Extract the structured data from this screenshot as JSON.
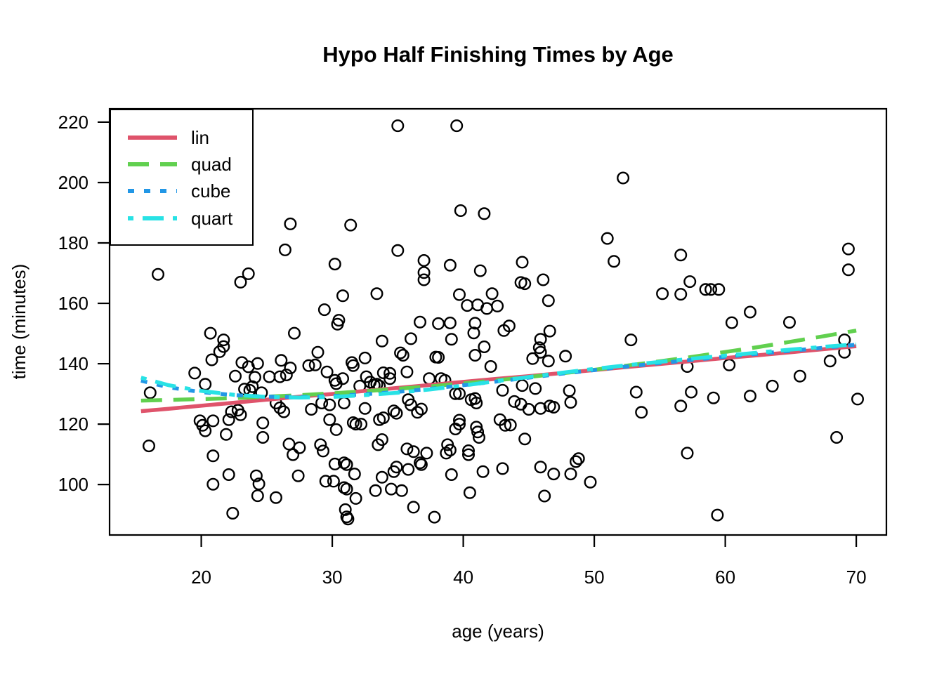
{
  "chart_data": {
    "type": "scatter",
    "title": "Hypo Half Finishing Times by Age",
    "xlabel": "age (years)",
    "ylabel": "time (minutes)",
    "x_range": [
      13.0,
      72.3
    ],
    "y_range": [
      83.3,
      224.4
    ],
    "x_ticks": [
      20,
      30,
      40,
      50,
      60,
      70
    ],
    "y_ticks": [
      100,
      120,
      140,
      160,
      180,
      200,
      220
    ],
    "grid": false,
    "background": "#ffffff",
    "marker": {
      "shape": "open-circle",
      "color": "#000000"
    },
    "legend_position": "top-left",
    "points": [
      [
        26.8,
        186.3
      ],
      [
        31.4,
        185.9
      ],
      [
        26.4,
        177.7
      ],
      [
        30.2,
        173.0
      ],
      [
        16.7,
        169.6
      ],
      [
        23.6,
        169.8
      ],
      [
        23.0,
        167.0
      ],
      [
        30.8,
        162.5
      ],
      [
        29.4,
        157.9
      ],
      [
        30.5,
        154.4
      ],
      [
        35.0,
        218.8
      ],
      [
        39.5,
        218.8
      ],
      [
        52.2,
        201.5
      ],
      [
        39.8,
        190.7
      ],
      [
        41.6,
        189.7
      ],
      [
        51.0,
        181.5
      ],
      [
        35.0,
        177.5
      ],
      [
        37.0,
        174.2
      ],
      [
        39.0,
        172.6
      ],
      [
        37.0,
        170.2
      ],
      [
        37.0,
        167.8
      ],
      [
        41.3,
        170.8
      ],
      [
        44.5,
        173.6
      ],
      [
        44.4,
        166.9
      ],
      [
        44.7,
        166.5
      ],
      [
        46.1,
        167.8
      ],
      [
        51.5,
        173.9
      ],
      [
        33.4,
        163.2
      ],
      [
        39.7,
        162.9
      ],
      [
        42.2,
        163.2
      ],
      [
        40.3,
        159.3
      ],
      [
        41.1,
        159.5
      ],
      [
        41.8,
        158.3
      ],
      [
        42.6,
        159.1
      ],
      [
        46.5,
        160.9
      ],
      [
        56.6,
        176.0
      ],
      [
        57.3,
        167.2
      ],
      [
        55.2,
        163.2
      ],
      [
        56.6,
        163.0
      ],
      [
        58.5,
        164.6
      ],
      [
        58.9,
        164.6
      ],
      [
        59.5,
        164.6
      ],
      [
        69.4,
        178.0
      ],
      [
        69.4,
        171.1
      ],
      [
        61.9,
        157.1
      ],
      [
        30.4,
        153.1
      ],
      [
        20.7,
        150.1
      ],
      [
        27.1,
        150.1
      ],
      [
        21.7,
        147.9
      ],
      [
        21.7,
        145.7
      ],
      [
        21.4,
        144.0
      ],
      [
        20.8,
        141.3
      ],
      [
        28.9,
        143.8
      ],
      [
        23.1,
        140.4
      ],
      [
        23.6,
        139.0
      ],
      [
        24.3,
        140.1
      ],
      [
        19.5,
        136.9
      ],
      [
        22.6,
        135.9
      ],
      [
        24.1,
        135.5
      ],
      [
        25.2,
        135.7
      ],
      [
        26.0,
        135.7
      ],
      [
        26.5,
        136.3
      ],
      [
        26.8,
        138.6
      ],
      [
        26.1,
        141.1
      ],
      [
        28.2,
        139.4
      ],
      [
        28.7,
        139.6
      ],
      [
        29.6,
        137.3
      ],
      [
        30.2,
        134.5
      ],
      [
        30.8,
        135.1
      ],
      [
        31.5,
        140.4
      ],
      [
        31.6,
        139.4
      ],
      [
        32.5,
        141.9
      ],
      [
        32.6,
        135.7
      ],
      [
        32.1,
        132.6
      ],
      [
        16.1,
        130.4
      ],
      [
        20.3,
        133.2
      ],
      [
        23.3,
        131.6
      ],
      [
        23.7,
        131.2
      ],
      [
        23.9,
        132.4
      ],
      [
        24.6,
        130.4
      ],
      [
        25.7,
        127.0
      ],
      [
        26.0,
        125.4
      ],
      [
        26.3,
        124.1
      ],
      [
        22.8,
        124.6
      ],
      [
        23.0,
        123.1
      ],
      [
        22.3,
        124.1
      ],
      [
        22.1,
        121.5
      ],
      [
        29.2,
        127.0
      ],
      [
        29.8,
        126.4
      ],
      [
        30.3,
        133.4
      ],
      [
        30.9,
        127.0
      ],
      [
        28.4,
        124.9
      ],
      [
        32.5,
        125.2
      ],
      [
        29.8,
        121.5
      ],
      [
        30.3,
        118.2
      ],
      [
        31.6,
        120.5
      ],
      [
        31.8,
        120.0
      ],
      [
        32.2,
        120.0
      ],
      [
        19.9,
        121.1
      ],
      [
        20.1,
        119.6
      ],
      [
        20.3,
        117.8
      ],
      [
        20.9,
        121.1
      ],
      [
        21.9,
        116.6
      ],
      [
        24.7,
        120.4
      ],
      [
        24.7,
        115.6
      ],
      [
        16.0,
        112.8
      ],
      [
        20.9,
        109.5
      ],
      [
        26.7,
        113.4
      ],
      [
        27.0,
        109.9
      ],
      [
        27.5,
        112.2
      ],
      [
        29.1,
        113.2
      ],
      [
        29.3,
        111.1
      ],
      [
        30.2,
        106.8
      ],
      [
        30.9,
        107.2
      ],
      [
        31.1,
        106.6
      ],
      [
        31.7,
        103.5
      ],
      [
        30.1,
        101.1
      ],
      [
        30.9,
        99.0
      ],
      [
        31.1,
        98.5
      ],
      [
        22.1,
        103.3
      ],
      [
        20.9,
        100.1
      ],
      [
        24.2,
        102.9
      ],
      [
        24.4,
        100.2
      ],
      [
        24.3,
        96.3
      ],
      [
        25.7,
        95.7
      ],
      [
        27.4,
        102.9
      ],
      [
        29.5,
        101.1
      ],
      [
        31.8,
        95.4
      ],
      [
        22.4,
        90.5
      ],
      [
        31.0,
        91.7
      ],
      [
        31.1,
        89.3
      ],
      [
        31.2,
        88.6
      ],
      [
        36.7,
        153.8
      ],
      [
        38.1,
        153.3
      ],
      [
        39.0,
        153.5
      ],
      [
        40.9,
        153.4
      ],
      [
        43.5,
        152.5
      ],
      [
        43.1,
        151.0
      ],
      [
        40.8,
        150.2
      ],
      [
        33.8,
        147.5
      ],
      [
        36.0,
        148.3
      ],
      [
        39.1,
        148.1
      ],
      [
        45.9,
        148.1
      ],
      [
        46.6,
        150.8
      ],
      [
        35.2,
        143.6
      ],
      [
        35.4,
        142.8
      ],
      [
        37.9,
        142.2
      ],
      [
        38.1,
        142.1
      ],
      [
        40.9,
        142.8
      ],
      [
        41.6,
        145.6
      ],
      [
        45.8,
        145.3
      ],
      [
        45.9,
        143.8
      ],
      [
        45.3,
        141.7
      ],
      [
        47.8,
        142.5
      ],
      [
        46.5,
        140.9
      ],
      [
        42.1,
        139.1
      ],
      [
        33.9,
        137.0
      ],
      [
        34.4,
        136.8
      ],
      [
        34.4,
        135.1
      ],
      [
        35.7,
        137.3
      ],
      [
        37.4,
        135.1
      ],
      [
        38.3,
        135.1
      ],
      [
        38.6,
        134.5
      ],
      [
        32.9,
        133.9
      ],
      [
        33.2,
        132.9
      ],
      [
        33.4,
        133.2
      ],
      [
        33.6,
        132.6
      ],
      [
        39.4,
        130.1
      ],
      [
        39.7,
        130.1
      ],
      [
        40.6,
        128.1
      ],
      [
        40.9,
        128.5
      ],
      [
        41.0,
        127.0
      ],
      [
        43.0,
        131.2
      ],
      [
        44.5,
        132.8
      ],
      [
        45.5,
        131.8
      ],
      [
        43.9,
        127.5
      ],
      [
        44.4,
        126.6
      ],
      [
        45.0,
        124.9
      ],
      [
        45.9,
        125.2
      ],
      [
        46.6,
        126.0
      ],
      [
        46.9,
        125.6
      ],
      [
        48.1,
        131.1
      ],
      [
        48.2,
        127.2
      ],
      [
        34.7,
        124.4
      ],
      [
        34.9,
        123.6
      ],
      [
        36.5,
        123.9
      ],
      [
        36.8,
        125.0
      ],
      [
        35.8,
        128.1
      ],
      [
        36.0,
        126.4
      ],
      [
        33.6,
        121.5
      ],
      [
        33.9,
        122.1
      ],
      [
        39.7,
        121.3
      ],
      [
        39.7,
        120.0
      ],
      [
        39.4,
        118.4
      ],
      [
        41.0,
        119.0
      ],
      [
        41.1,
        117.4
      ],
      [
        41.2,
        115.6
      ],
      [
        42.8,
        121.5
      ],
      [
        43.2,
        119.6
      ],
      [
        43.6,
        119.7
      ],
      [
        33.8,
        114.9
      ],
      [
        33.5,
        113.2
      ],
      [
        35.7,
        111.8
      ],
      [
        36.2,
        110.9
      ],
      [
        37.2,
        110.4
      ],
      [
        36.7,
        107.2
      ],
      [
        36.8,
        106.6
      ],
      [
        35.8,
        105.0
      ],
      [
        34.9,
        105.8
      ],
      [
        34.7,
        104.3
      ],
      [
        38.8,
        113.2
      ],
      [
        39.0,
        111.4
      ],
      [
        38.7,
        110.4
      ],
      [
        40.4,
        111.2
      ],
      [
        40.4,
        109.9
      ],
      [
        44.7,
        115.1
      ],
      [
        45.9,
        105.8
      ],
      [
        46.9,
        103.5
      ],
      [
        48.2,
        103.5
      ],
      [
        48.6,
        107.6
      ],
      [
        48.8,
        108.6
      ],
      [
        33.8,
        102.4
      ],
      [
        34.5,
        98.5
      ],
      [
        35.3,
        98.0
      ],
      [
        33.3,
        98.0
      ],
      [
        41.5,
        104.3
      ],
      [
        43.0,
        105.3
      ],
      [
        39.1,
        103.3
      ],
      [
        40.5,
        97.3
      ],
      [
        46.2,
        96.2
      ],
      [
        49.7,
        100.8
      ],
      [
        36.2,
        92.5
      ],
      [
        37.8,
        89.2
      ],
      [
        60.5,
        153.6
      ],
      [
        64.9,
        153.7
      ],
      [
        52.8,
        147.9
      ],
      [
        69.1,
        147.9
      ],
      [
        69.1,
        143.8
      ],
      [
        57.1,
        139.1
      ],
      [
        60.3,
        139.6
      ],
      [
        68.0,
        140.9
      ],
      [
        65.7,
        135.9
      ],
      [
        63.6,
        132.6
      ],
      [
        53.2,
        130.6
      ],
      [
        57.4,
        130.6
      ],
      [
        59.1,
        128.7
      ],
      [
        61.9,
        129.3
      ],
      [
        56.6,
        126.0
      ],
      [
        53.6,
        123.9
      ],
      [
        70.1,
        128.3
      ],
      [
        68.5,
        115.6
      ],
      [
        57.1,
        110.4
      ],
      [
        59.4,
        89.9
      ]
    ],
    "fit_line_ages": [
      15.4,
      17.5,
      20,
      22.5,
      25,
      27.5,
      30,
      32.5,
      35,
      37.5,
      40,
      42.5,
      45,
      47.5,
      50,
      52.5,
      55,
      57.5,
      60,
      62.5,
      65,
      67.5,
      70
    ],
    "fit_lines": [
      {
        "name": "lin",
        "color": "#DF536B",
        "linetype": "solid",
        "y": [
          124.3,
          125.1,
          126.1,
          127.1,
          128.1,
          129.1,
          130.0,
          131.0,
          132.0,
          133.0,
          134.0,
          135.0,
          135.9,
          136.9,
          137.9,
          138.9,
          139.9,
          140.9,
          141.9,
          142.8,
          143.8,
          144.8,
          145.8
        ]
      },
      {
        "name": "quad",
        "color": "#61D04F",
        "linetype": "dashed",
        "y": [
          127.8,
          128.0,
          128.3,
          128.6,
          129.1,
          129.6,
          130.2,
          130.9,
          131.7,
          132.5,
          133.5,
          134.5,
          135.6,
          136.8,
          138.0,
          139.4,
          140.8,
          142.3,
          143.9,
          145.5,
          147.3,
          149.1,
          151.0
        ]
      },
      {
        "name": "cube",
        "color": "#2297E6",
        "linetype": "dotted",
        "y": [
          134.4,
          132.2,
          130.6,
          129.6,
          129.1,
          129.0,
          129.3,
          129.9,
          130.7,
          131.7,
          132.9,
          134.1,
          135.4,
          136.7,
          137.9,
          139.1,
          140.2,
          141.3,
          142.3,
          143.3,
          144.3,
          145.3,
          146.3
        ]
      },
      {
        "name": "quart",
        "color": "#28E2E5",
        "linetype": "dotdash",
        "y": [
          135.4,
          132.9,
          131.0,
          129.7,
          129.0,
          128.8,
          129.0,
          129.6,
          130.4,
          131.5,
          132.8,
          134.2,
          135.6,
          137.0,
          138.3,
          139.5,
          140.6,
          141.7,
          142.7,
          143.7,
          144.7,
          145.6,
          146.4
        ]
      }
    ],
    "legend": {
      "items": [
        "lin",
        "quad",
        "cube",
        "quart"
      ]
    }
  }
}
